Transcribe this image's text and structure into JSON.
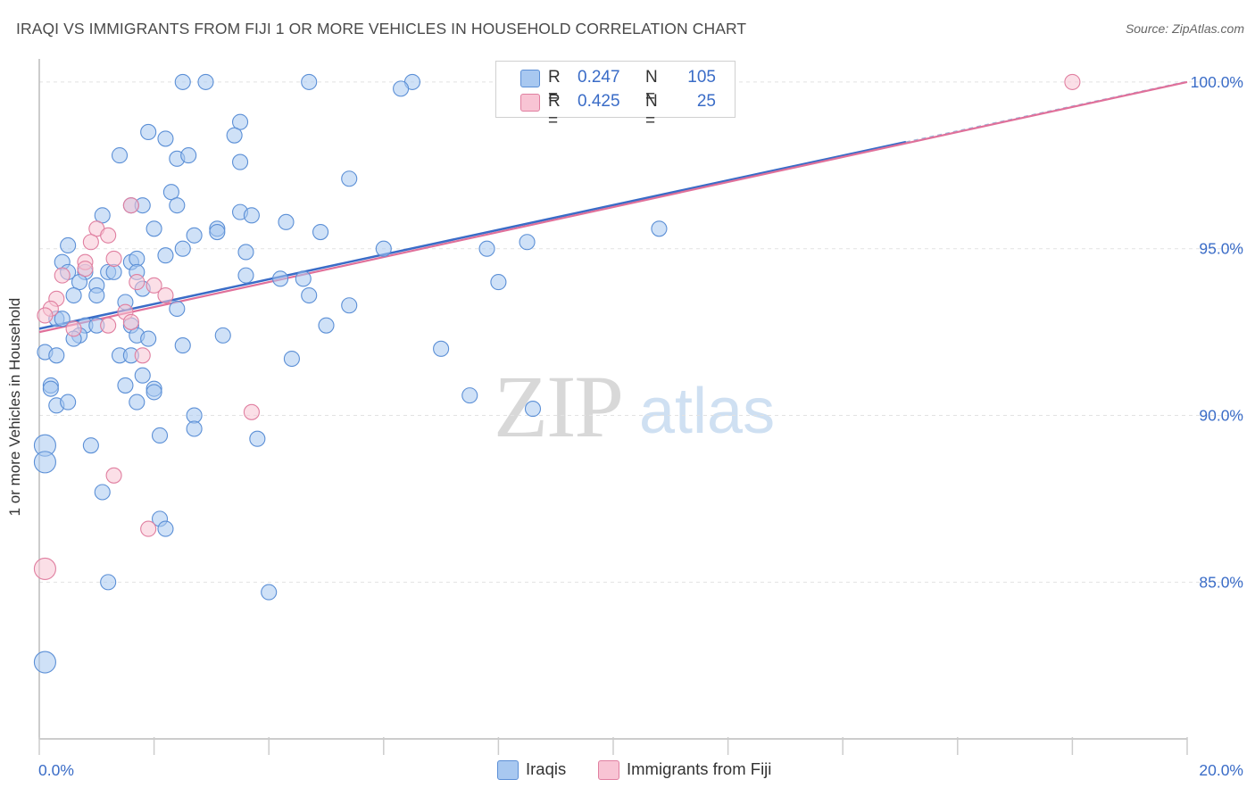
{
  "title": "IRAQI VS IMMIGRANTS FROM FIJI 1 OR MORE VEHICLES IN HOUSEHOLD CORRELATION CHART",
  "source": "Source: ZipAtlas.com",
  "watermark": {
    "zip": "ZIP",
    "atlas": "atlas"
  },
  "legend": {
    "series1": {
      "r_label": "R =",
      "r_value": "0.247",
      "n_label": "N =",
      "n_value": "105",
      "color": "#a8c8f0",
      "stroke": "#5b8fd6"
    },
    "series2": {
      "r_label": "R =",
      "r_value": "0.425",
      "n_label": "N =",
      "n_value": "25",
      "color": "#f8c4d4",
      "stroke": "#e07fa0"
    }
  },
  "bottom_legend": {
    "series1": "Iraqis",
    "series2": "Immigrants from Fiji"
  },
  "chart_data": {
    "type": "scatter",
    "title": "IRAQI VS IMMIGRANTS FROM FIJI 1 OR MORE VEHICLES IN HOUSEHOLD CORRELATION CHART",
    "xlabel": "",
    "ylabel": "1 or more Vehicles in Household",
    "xlim": [
      0,
      20
    ],
    "ylim": [
      80.3,
      100.8
    ],
    "x_tick_labels": [
      "0.0%",
      "20.0%"
    ],
    "y_ticks": [
      85,
      90,
      95,
      100
    ],
    "y_tick_labels": [
      "85.0%",
      "90.0%",
      "95.0%",
      "100.0%"
    ],
    "grid": true,
    "legend_placement": "top-center",
    "series": [
      {
        "name": "Iraqis",
        "color": "#a8c8f0",
        "stroke": "#5b8fd6",
        "trend": {
          "x": [
            0,
            15.1
          ],
          "y": [
            92.6,
            98.2
          ]
        },
        "points": [
          {
            "x": 2.5,
            "y": 100.0
          },
          {
            "x": 2.9,
            "y": 100.0
          },
          {
            "x": 4.7,
            "y": 100.0
          },
          {
            "x": 6.5,
            "y": 100.0
          },
          {
            "x": 6.3,
            "y": 99.8
          },
          {
            "x": 3.5,
            "y": 98.8
          },
          {
            "x": 1.9,
            "y": 98.5
          },
          {
            "x": 2.2,
            "y": 98.3
          },
          {
            "x": 3.4,
            "y": 98.4
          },
          {
            "x": 1.4,
            "y": 97.8
          },
          {
            "x": 2.4,
            "y": 97.7
          },
          {
            "x": 2.6,
            "y": 97.8
          },
          {
            "x": 3.5,
            "y": 97.6
          },
          {
            "x": 5.4,
            "y": 97.1
          },
          {
            "x": 2.3,
            "y": 96.7
          },
          {
            "x": 1.6,
            "y": 96.3
          },
          {
            "x": 1.8,
            "y": 96.3
          },
          {
            "x": 2.4,
            "y": 96.3
          },
          {
            "x": 1.1,
            "y": 96.0
          },
          {
            "x": 3.5,
            "y": 96.1
          },
          {
            "x": 3.7,
            "y": 96.0
          },
          {
            "x": 4.3,
            "y": 95.8
          },
          {
            "x": 2.0,
            "y": 95.6
          },
          {
            "x": 3.1,
            "y": 95.6
          },
          {
            "x": 3.1,
            "y": 95.5
          },
          {
            "x": 2.7,
            "y": 95.4
          },
          {
            "x": 4.9,
            "y": 95.5
          },
          {
            "x": 10.8,
            "y": 95.6
          },
          {
            "x": 0.5,
            "y": 95.1
          },
          {
            "x": 2.5,
            "y": 95.0
          },
          {
            "x": 3.6,
            "y": 94.9
          },
          {
            "x": 6.0,
            "y": 95.0
          },
          {
            "x": 7.8,
            "y": 95.0
          },
          {
            "x": 8.5,
            "y": 95.2
          },
          {
            "x": 0.4,
            "y": 94.6
          },
          {
            "x": 1.6,
            "y": 94.6
          },
          {
            "x": 1.7,
            "y": 94.7
          },
          {
            "x": 2.2,
            "y": 94.8
          },
          {
            "x": 0.5,
            "y": 94.3
          },
          {
            "x": 0.8,
            "y": 94.3
          },
          {
            "x": 1.2,
            "y": 94.3
          },
          {
            "x": 1.3,
            "y": 94.3
          },
          {
            "x": 1.7,
            "y": 94.3
          },
          {
            "x": 3.6,
            "y": 94.2
          },
          {
            "x": 4.2,
            "y": 94.1
          },
          {
            "x": 4.6,
            "y": 94.1
          },
          {
            "x": 8.0,
            "y": 94.0
          },
          {
            "x": 0.7,
            "y": 94.0
          },
          {
            "x": 1.0,
            "y": 93.9
          },
          {
            "x": 1.8,
            "y": 93.8
          },
          {
            "x": 0.6,
            "y": 93.6
          },
          {
            "x": 1.0,
            "y": 93.6
          },
          {
            "x": 4.7,
            "y": 93.6
          },
          {
            "x": 1.5,
            "y": 93.4
          },
          {
            "x": 2.4,
            "y": 93.2
          },
          {
            "x": 5.4,
            "y": 93.3
          },
          {
            "x": 0.3,
            "y": 92.9
          },
          {
            "x": 0.4,
            "y": 92.9
          },
          {
            "x": 0.8,
            "y": 92.7
          },
          {
            "x": 1.0,
            "y": 92.7
          },
          {
            "x": 1.6,
            "y": 92.7
          },
          {
            "x": 5.0,
            "y": 92.7
          },
          {
            "x": 0.7,
            "y": 92.4
          },
          {
            "x": 0.6,
            "y": 92.3
          },
          {
            "x": 1.7,
            "y": 92.4
          },
          {
            "x": 1.9,
            "y": 92.3
          },
          {
            "x": 3.2,
            "y": 92.4
          },
          {
            "x": 2.5,
            "y": 92.1
          },
          {
            "x": 7.0,
            "y": 92.0
          },
          {
            "x": 0.1,
            "y": 91.9
          },
          {
            "x": 0.3,
            "y": 91.8
          },
          {
            "x": 1.4,
            "y": 91.8
          },
          {
            "x": 1.6,
            "y": 91.8
          },
          {
            "x": 4.4,
            "y": 91.7
          },
          {
            "x": 1.8,
            "y": 91.2
          },
          {
            "x": 0.2,
            "y": 90.9
          },
          {
            "x": 0.2,
            "y": 90.8
          },
          {
            "x": 1.5,
            "y": 90.9
          },
          {
            "x": 2.0,
            "y": 90.8
          },
          {
            "x": 2.0,
            "y": 90.7
          },
          {
            "x": 7.5,
            "y": 90.6
          },
          {
            "x": 1.7,
            "y": 90.4
          },
          {
            "x": 0.3,
            "y": 90.3
          },
          {
            "x": 0.5,
            "y": 90.4
          },
          {
            "x": 8.6,
            "y": 90.2
          },
          {
            "x": 2.7,
            "y": 90.0
          },
          {
            "x": 2.7,
            "y": 89.6
          },
          {
            "x": 2.1,
            "y": 89.4
          },
          {
            "x": 3.8,
            "y": 89.3
          },
          {
            "x": 0.1,
            "y": 89.1
          },
          {
            "x": 0.9,
            "y": 89.1
          },
          {
            "x": 0.1,
            "y": 88.6
          },
          {
            "x": 1.1,
            "y": 87.7
          },
          {
            "x": 2.1,
            "y": 86.9
          },
          {
            "x": 2.2,
            "y": 86.6
          },
          {
            "x": 1.2,
            "y": 85.0
          },
          {
            "x": 4.0,
            "y": 84.7
          },
          {
            "x": 0.1,
            "y": 82.6
          }
        ]
      },
      {
        "name": "Immigrants from Fiji",
        "color": "#f8c4d4",
        "stroke": "#e07fa0",
        "trend": {
          "x": [
            0,
            20
          ],
          "y": [
            92.5,
            100.0
          ]
        },
        "points": [
          {
            "x": 18.0,
            "y": 100.0
          },
          {
            "x": 1.6,
            "y": 96.3
          },
          {
            "x": 1.0,
            "y": 95.6
          },
          {
            "x": 1.2,
            "y": 95.4
          },
          {
            "x": 0.9,
            "y": 95.2
          },
          {
            "x": 1.3,
            "y": 94.7
          },
          {
            "x": 0.8,
            "y": 94.6
          },
          {
            "x": 0.8,
            "y": 94.4
          },
          {
            "x": 0.4,
            "y": 94.2
          },
          {
            "x": 1.7,
            "y": 94.0
          },
          {
            "x": 2.0,
            "y": 93.9
          },
          {
            "x": 0.3,
            "y": 93.5
          },
          {
            "x": 2.2,
            "y": 93.6
          },
          {
            "x": 1.5,
            "y": 93.1
          },
          {
            "x": 0.2,
            "y": 93.2
          },
          {
            "x": 0.1,
            "y": 93.0
          },
          {
            "x": 1.6,
            "y": 92.8
          },
          {
            "x": 1.2,
            "y": 92.7
          },
          {
            "x": 0.6,
            "y": 92.6
          },
          {
            "x": 1.8,
            "y": 91.8
          },
          {
            "x": 3.7,
            "y": 90.1
          },
          {
            "x": 1.3,
            "y": 88.2
          },
          {
            "x": 1.9,
            "y": 86.6
          },
          {
            "x": 0.1,
            "y": 85.4
          }
        ]
      }
    ]
  }
}
